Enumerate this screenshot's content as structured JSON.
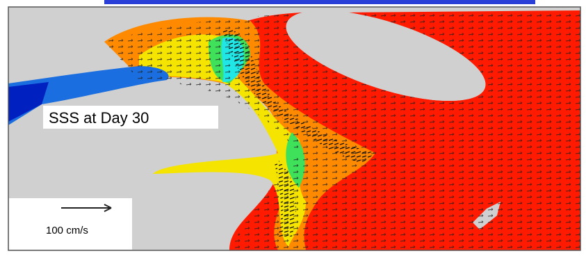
{
  "map": {
    "label": "SSS at Day 30",
    "scale_label": "100 cm/s"
  }
}
